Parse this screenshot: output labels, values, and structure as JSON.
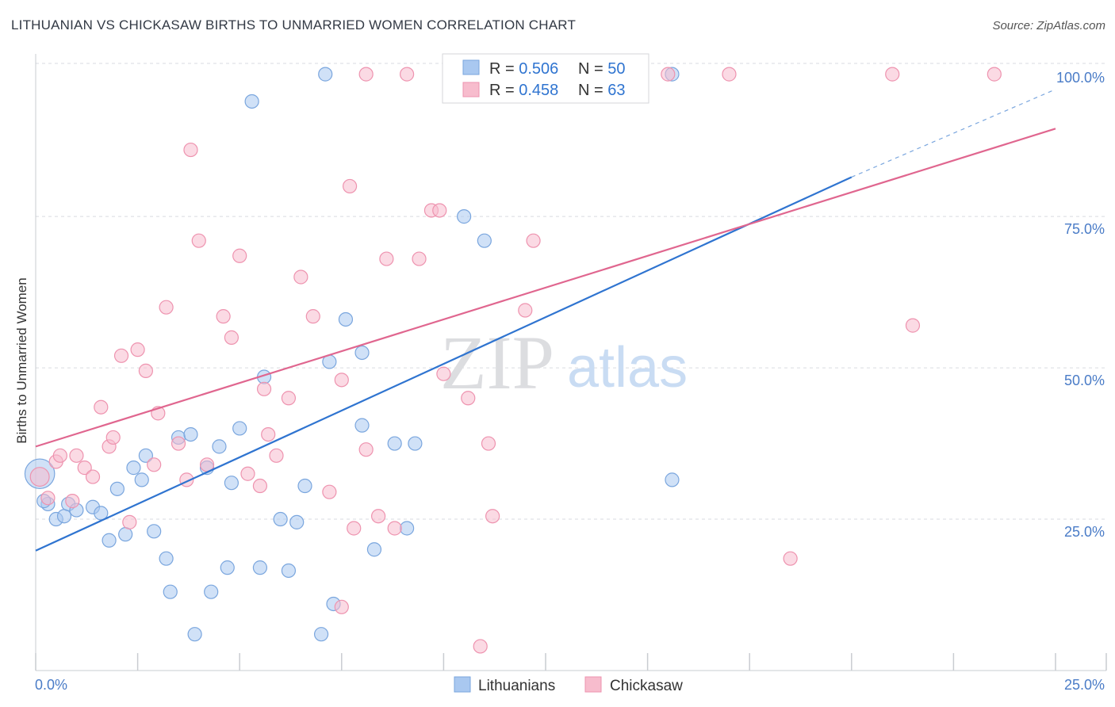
{
  "title": "LITHUANIAN VS CHICKASAW BIRTHS TO UNMARRIED WOMEN CORRELATION CHART",
  "source": "Source: ZipAtlas.com",
  "watermark": {
    "zip": "ZIP",
    "atlas": "atlas"
  },
  "colors": {
    "blue_fill": "#a9c8f0",
    "blue_stroke": "#7aa6de",
    "blue_line": "#2f74d0",
    "pink_fill": "#f7bccd",
    "pink_stroke": "#ee93af",
    "pink_line": "#e0668f",
    "grid": "#d9dbe0",
    "axis_text": "#4a7cc7"
  },
  "legend": {
    "rows": [
      {
        "r_label": "R = ",
        "r_value": "0.506",
        "n_label": "N = ",
        "n_value": "50"
      },
      {
        "r_label": "R = ",
        "r_value": "0.458",
        "n_label": "N = ",
        "n_value": "63"
      }
    ]
  },
  "chart_data": {
    "type": "scatter",
    "title": "LITHUANIAN VS CHICKASAW BIRTHS TO UNMARRIED WOMEN CORRELATION CHART",
    "xlabel": "",
    "ylabel": "Births to Unmarried Women",
    "xlim": [
      0,
      25
    ],
    "ylim": [
      0,
      100
    ],
    "x_tick_labels": [
      "0.0%",
      "25.0%"
    ],
    "y_tick_labels": [
      "25.0%",
      "50.0%",
      "75.0%",
      "100.0%"
    ],
    "y_tick_values": [
      25,
      50,
      75,
      100
    ],
    "grid": true,
    "legend_position": "top-center",
    "series": [
      {
        "name": "Lithuanians",
        "r": 0.506,
        "n": 50,
        "trend": {
          "x0": 0,
          "y0": 19.8,
          "x1": 20,
          "y1": 81.5,
          "dash_to_x": 25,
          "dash_to_y": 96
        },
        "points": [
          [
            0.1,
            32.5,
            2.2
          ],
          [
            0.3,
            27.5,
            1
          ],
          [
            0.5,
            25,
            1
          ],
          [
            0.7,
            25.5,
            1
          ],
          [
            0.8,
            27.5,
            1
          ],
          [
            1.0,
            26.5,
            1
          ],
          [
            1.4,
            27,
            1
          ],
          [
            1.6,
            26,
            1
          ],
          [
            1.8,
            21.5,
            1
          ],
          [
            2.0,
            30,
            1
          ],
          [
            2.2,
            22.5,
            1
          ],
          [
            2.4,
            33.5,
            1
          ],
          [
            2.6,
            31.5,
            1
          ],
          [
            2.7,
            35.5,
            1
          ],
          [
            2.9,
            23,
            1
          ],
          [
            3.2,
            18.5,
            1
          ],
          [
            3.3,
            13,
            1
          ],
          [
            3.5,
            38.5,
            1
          ],
          [
            3.8,
            39,
            1
          ],
          [
            3.9,
            6,
            1
          ],
          [
            4.2,
            33.5,
            1
          ],
          [
            4.3,
            13,
            1
          ],
          [
            4.5,
            37,
            1
          ],
          [
            4.7,
            17,
            1
          ],
          [
            4.8,
            31,
            1
          ],
          [
            5.0,
            40,
            1
          ],
          [
            5.3,
            94,
            1
          ],
          [
            5.5,
            17,
            1
          ],
          [
            5.6,
            48.5,
            1
          ],
          [
            6.0,
            25,
            1
          ],
          [
            6.2,
            16.5,
            1
          ],
          [
            6.4,
            24.5,
            1
          ],
          [
            6.6,
            30.5,
            1
          ],
          [
            7.0,
            6,
            1
          ],
          [
            7.2,
            51,
            1
          ],
          [
            7.3,
            11,
            1
          ],
          [
            7.6,
            58,
            1
          ],
          [
            8.0,
            52.5,
            1
          ],
          [
            8.0,
            40.5,
            1
          ],
          [
            8.3,
            20,
            1
          ],
          [
            7.1,
            98.5,
            1
          ],
          [
            9.1,
            23.5,
            1
          ],
          [
            9.3,
            37.5,
            1
          ],
          [
            8.8,
            37.5,
            1
          ],
          [
            10.5,
            75,
            1
          ],
          [
            11.0,
            71,
            1
          ],
          [
            15.6,
            98.5,
            1
          ],
          [
            15.6,
            31.5,
            1
          ],
          [
            0.2,
            28,
            1
          ],
          [
            11.9,
            98.5,
            1
          ]
        ]
      },
      {
        "name": "Chickasaw",
        "r": 0.458,
        "n": 63,
        "trend": {
          "x0": 0,
          "y0": 37,
          "x1": 25,
          "y1": 89.5
        },
        "points": [
          [
            0.1,
            32,
            1.4
          ],
          [
            0.3,
            28.5,
            1
          ],
          [
            0.5,
            34.5,
            1
          ],
          [
            0.6,
            35.5,
            1
          ],
          [
            0.9,
            28,
            1
          ],
          [
            1.0,
            35.5,
            1
          ],
          [
            1.2,
            33.5,
            1
          ],
          [
            1.4,
            32,
            1
          ],
          [
            1.6,
            43.5,
            1
          ],
          [
            1.8,
            37,
            1
          ],
          [
            1.9,
            38.5,
            1
          ],
          [
            2.1,
            52,
            1
          ],
          [
            2.3,
            24.5,
            1
          ],
          [
            2.5,
            53,
            1
          ],
          [
            2.7,
            49.5,
            1
          ],
          [
            2.9,
            34,
            1
          ],
          [
            3.0,
            42.5,
            1
          ],
          [
            3.2,
            60,
            1
          ],
          [
            3.5,
            37.5,
            1
          ],
          [
            3.7,
            31.5,
            1
          ],
          [
            3.8,
            86,
            1
          ],
          [
            4.0,
            71,
            1
          ],
          [
            4.2,
            34,
            1
          ],
          [
            4.6,
            58.5,
            1
          ],
          [
            4.8,
            55,
            1
          ],
          [
            5.0,
            68.5,
            1
          ],
          [
            5.2,
            32.5,
            1
          ],
          [
            5.5,
            30.5,
            1
          ],
          [
            5.6,
            46.5,
            1
          ],
          [
            5.7,
            39,
            1
          ],
          [
            5.9,
            35.5,
            1
          ],
          [
            6.2,
            45,
            1
          ],
          [
            6.5,
            65,
            1
          ],
          [
            6.8,
            58.5,
            1
          ],
          [
            7.2,
            29.5,
            1
          ],
          [
            7.5,
            10.5,
            1
          ],
          [
            7.7,
            80,
            1
          ],
          [
            7.8,
            23.5,
            1
          ],
          [
            7.5,
            48,
            1
          ],
          [
            8.1,
            36.5,
            1
          ],
          [
            8.4,
            25.5,
            1
          ],
          [
            8.6,
            68,
            1
          ],
          [
            8.8,
            23.5,
            1
          ],
          [
            9.4,
            68,
            1
          ],
          [
            9.7,
            76,
            1
          ],
          [
            9.9,
            76,
            1
          ],
          [
            10.0,
            49,
            1
          ],
          [
            10.6,
            45,
            1
          ],
          [
            10.9,
            4,
            1
          ],
          [
            11.1,
            37.5,
            1
          ],
          [
            11.2,
            25.5,
            1
          ],
          [
            12.0,
            59.5,
            1
          ],
          [
            12.2,
            71,
            1
          ],
          [
            13.2,
            98.5,
            1
          ],
          [
            14.0,
            98.5,
            1
          ],
          [
            15.5,
            98.5,
            1
          ],
          [
            17.0,
            98.5,
            1
          ],
          [
            18.5,
            18.5,
            1
          ],
          [
            21.5,
            57,
            1
          ],
          [
            21.0,
            98.5,
            1
          ],
          [
            23.5,
            98.5,
            1
          ],
          [
            8.1,
            98.5,
            1
          ],
          [
            9.1,
            98.5,
            1
          ]
        ]
      }
    ]
  }
}
